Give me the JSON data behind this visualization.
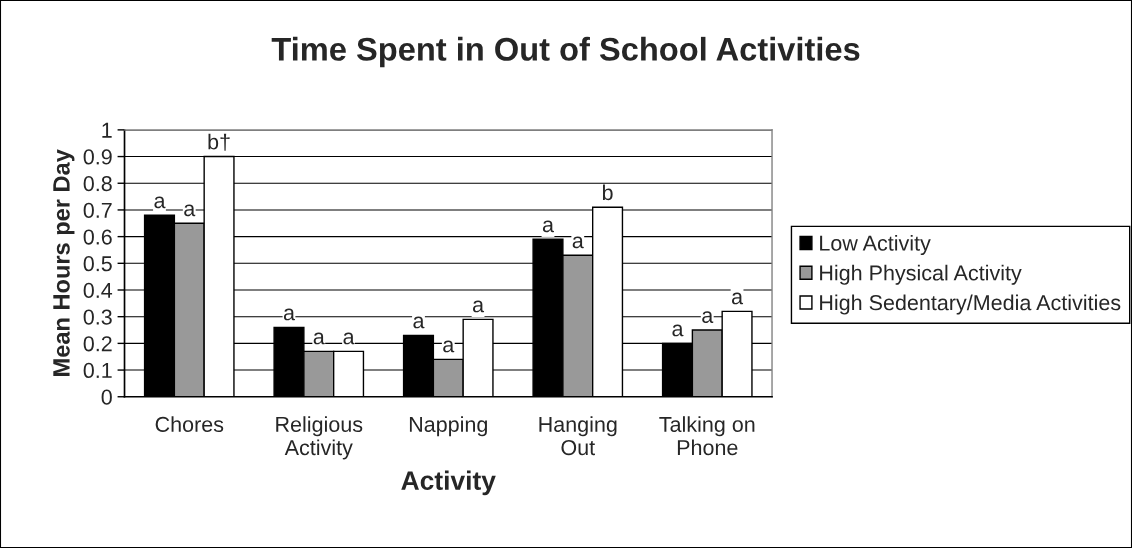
{
  "chart_data": {
    "type": "bar",
    "title": "Time Spent in Out of School Activities",
    "xlabel": "Activity",
    "ylabel": "Mean Hours per Day",
    "categories": [
      "Chores",
      "Religious\nActivity",
      "Napping",
      "Hanging\nOut",
      "Talking on\nPhone"
    ],
    "series": [
      {
        "name": "Low Activity",
        "color": "#000000",
        "values": [
          0.68,
          0.26,
          0.23,
          0.59,
          0.2
        ],
        "value_labels": [
          "a",
          "a",
          "a",
          "a",
          "a"
        ]
      },
      {
        "name": "High Physical Activity",
        "color": "#999999",
        "values": [
          0.65,
          0.17,
          0.14,
          0.53,
          0.25
        ],
        "value_labels": [
          "a",
          "a",
          "a",
          "a",
          "a"
        ]
      },
      {
        "name": "High Sedentary/Media Activities",
        "color": "#ffffff",
        "values": [
          0.9,
          0.17,
          0.29,
          0.71,
          0.32
        ],
        "value_labels": [
          "b†",
          "a",
          "a",
          "b",
          "a"
        ]
      }
    ],
    "ylim": [
      0,
      1
    ],
    "yticks": [
      0,
      0.1,
      0.2,
      0.3,
      0.4,
      0.5,
      0.6,
      0.7,
      0.8,
      0.9,
      1
    ],
    "grid": "y",
    "legend": "right"
  }
}
